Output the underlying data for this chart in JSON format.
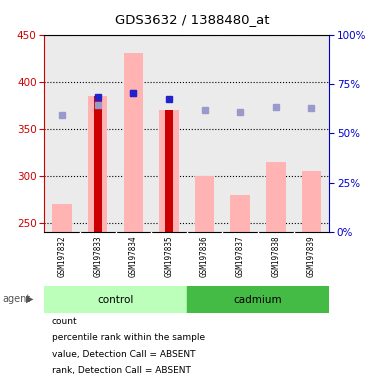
{
  "title": "GDS3632 / 1388480_at",
  "samples": [
    "GSM197832",
    "GSM197833",
    "GSM197834",
    "GSM197835",
    "GSM197836",
    "GSM197837",
    "GSM197838",
    "GSM197839"
  ],
  "ylim_left": [
    240,
    450
  ],
  "ylim_right": [
    0,
    100
  ],
  "yticks_left": [
    250,
    300,
    350,
    400,
    450
  ],
  "yticks_right": [
    0,
    25,
    50,
    75,
    100
  ],
  "red_bars": [
    null,
    385,
    null,
    370,
    null,
    null,
    null,
    null
  ],
  "pink_bars": [
    270,
    385,
    430,
    370,
    300,
    280,
    315,
    305
  ],
  "blue_squares_left": [
    null,
    384,
    388,
    382,
    null,
    null,
    null,
    null
  ],
  "lavender_squares_left": [
    365,
    375,
    388,
    null,
    370,
    368,
    373,
    372
  ],
  "bg_color": "#ebebeb",
  "left_axis_color": "#cc0000",
  "right_axis_color": "#0000cc",
  "pink_color": "#ffb3b3",
  "red_color": "#cc0000",
  "blue_color": "#2222cc",
  "lavender_color": "#9999cc",
  "control_color": "#bbffbb",
  "cadmium_color": "#44bb44",
  "gray_box_color": "#cccccc",
  "legend_labels": [
    "count",
    "percentile rank within the sample",
    "value, Detection Call = ABSENT",
    "rank, Detection Call = ABSENT"
  ]
}
